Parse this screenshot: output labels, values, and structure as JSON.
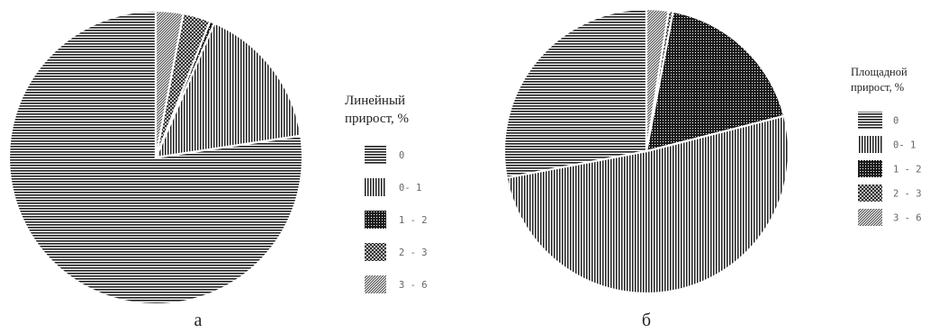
{
  "chart_data": [
    {
      "type": "pie",
      "panel_label": "а",
      "legend_title": [
        "Линейный",
        "прирост, %"
      ],
      "categories": [
        "0",
        "0- 1",
        "1 - 2",
        "2 - 3",
        "3 - 6"
      ],
      "values": [
        77,
        16,
        0.5,
        3,
        3
      ],
      "patterns": [
        "hlines",
        "vlines",
        "dots",
        "cross",
        "diag"
      ],
      "start_angle_deg": 0,
      "direction": "counterclockwise",
      "legend_position": "right"
    },
    {
      "type": "pie",
      "panel_label": "б",
      "legend_title": [
        "Площадной",
        "прирост, %"
      ],
      "categories": [
        "0",
        "0- 1",
        "1 - 2",
        "2 - 3",
        "3 - 6"
      ],
      "values": [
        28,
        51,
        18,
        0.5,
        2.5
      ],
      "patterns": [
        "hlines",
        "vlines",
        "dots",
        "cross",
        "diag"
      ],
      "start_angle_deg": 0,
      "direction": "counterclockwise",
      "legend_position": "right"
    }
  ]
}
